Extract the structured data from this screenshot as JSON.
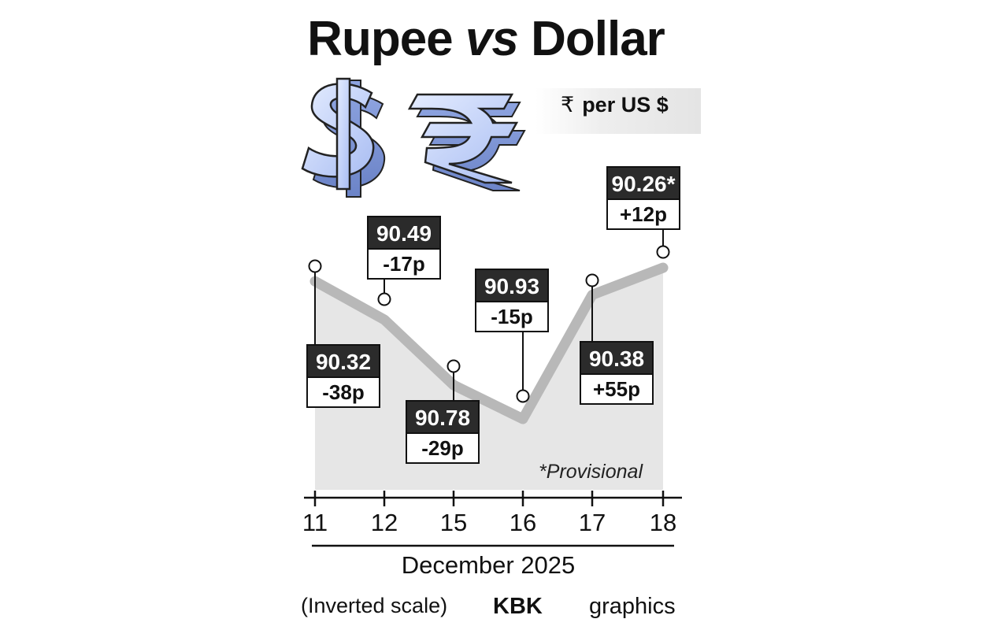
{
  "title": {
    "main": "Rupee",
    "vs": "vs",
    "tail": "Dollar"
  },
  "unit": {
    "symbol": "₹",
    "text": "per US $"
  },
  "chart_data": {
    "type": "line",
    "title": "Rupee vs Dollar",
    "ylabel": "₹ per US $",
    "xlabel": "December 2025",
    "inverted_scale": true,
    "categories": [
      "11",
      "12",
      "15",
      "16",
      "17",
      "18"
    ],
    "series": [
      {
        "values": [
          90.32,
          90.49,
          90.78,
          90.93,
          90.38,
          90.26
        ]
      }
    ],
    "labels": [
      {
        "value": "90.32",
        "change": "-38p"
      },
      {
        "value": "90.49",
        "change": "-17p"
      },
      {
        "value": "90.78",
        "change": "-29p"
      },
      {
        "value": "90.93",
        "change": "-15p"
      },
      {
        "value": "90.38",
        "change": "+55p"
      },
      {
        "value": "90.26*",
        "change": "+12p"
      }
    ],
    "colors": {
      "line": "#b8b8b8",
      "area": "#e6e6e6",
      "label_dark": "#2b2b2b"
    }
  },
  "note": "*Provisional",
  "scale_note": "(Inverted scale)",
  "credit": {
    "bold": "KBK",
    "rest": "graphics"
  },
  "icons": [
    "dollar-3d-icon",
    "rupee-3d-icon"
  ]
}
